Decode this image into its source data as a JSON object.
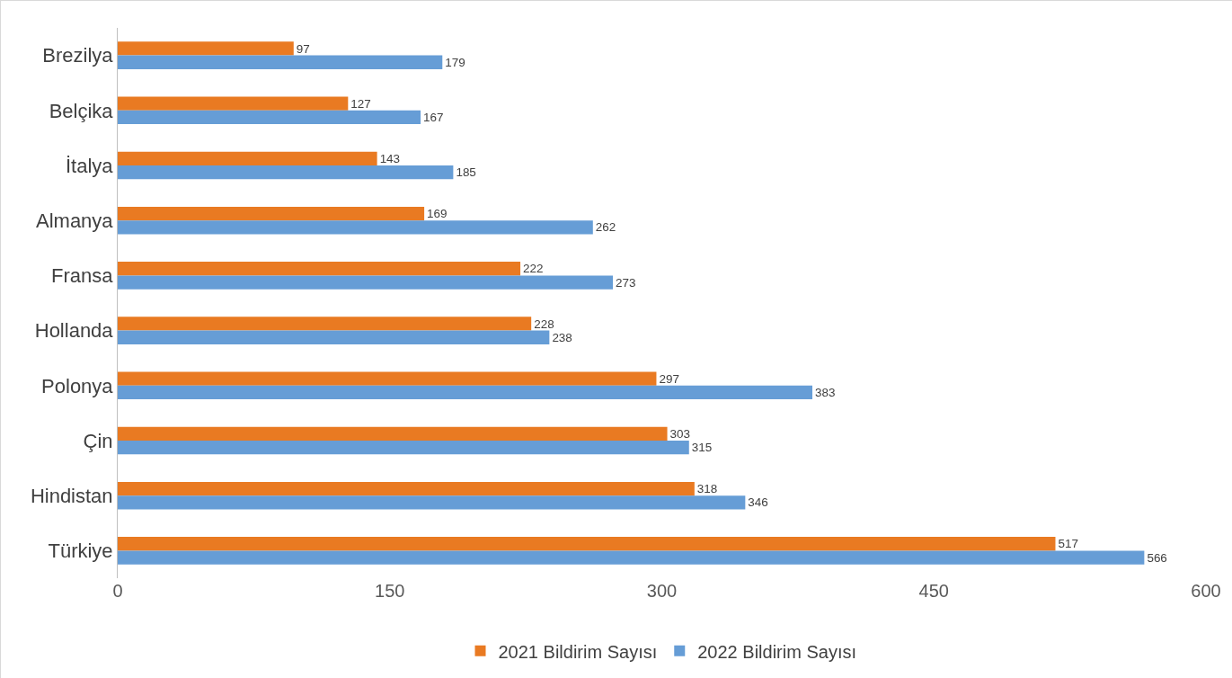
{
  "chart_data": {
    "type": "bar",
    "orientation": "horizontal",
    "categories": [
      "Brezilya",
      "Belçika",
      "İtalya",
      "Almanya",
      "Fransa",
      "Hollanda",
      "Polonya",
      "Çin",
      "Hindistan",
      "Türkiye"
    ],
    "series": [
      {
        "name": "2021 Bildirim Sayısı",
        "color": "#e97a22",
        "values": [
          97,
          127,
          143,
          169,
          222,
          228,
          297,
          303,
          318,
          517
        ]
      },
      {
        "name": "2022 Bildirim Sayısı",
        "color": "#669dd6",
        "values": [
          179,
          167,
          185,
          262,
          273,
          238,
          383,
          315,
          346,
          566
        ]
      }
    ],
    "xlim": [
      0,
      600
    ],
    "xticks": [
      0,
      150,
      300,
      450,
      600
    ],
    "grid": false,
    "legend": "bottom",
    "data_labels": true
  }
}
